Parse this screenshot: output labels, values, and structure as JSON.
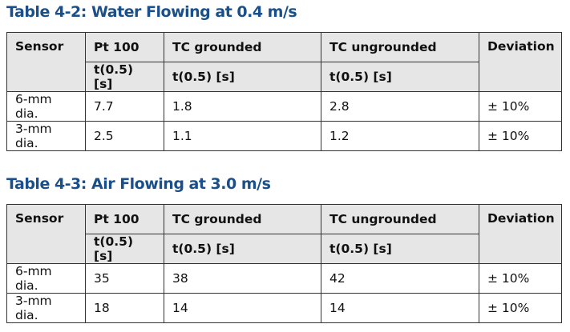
{
  "tables": [
    {
      "title": "Table 4-2: Water Flowing at 0.4 m/s",
      "headers": [
        "Sensor",
        "Pt 100",
        "TC grounded",
        "TC ungrounded",
        "Deviation"
      ],
      "subheaders": [
        "t(0.5) [s]",
        "t(0.5) [s]",
        "t(0.5) [s]"
      ],
      "rows": [
        [
          "6-mm dia.",
          "7.7",
          "1.8",
          "2.8",
          "± 10%"
        ],
        [
          "3-mm dia.",
          "2.5",
          "1.1",
          "1.2",
          "± 10%"
        ]
      ]
    },
    {
      "title": "Table 4-3: Air Flowing at 3.0 m/s",
      "headers": [
        "Sensor",
        "Pt 100",
        "TC grounded",
        "TC ungrounded",
        "Deviation"
      ],
      "subheaders": [
        "t(0.5) [s]",
        "t(0.5) [s]",
        "t(0.5) [s]"
      ],
      "rows": [
        [
          "6-mm dia.",
          "35",
          "38",
          "42",
          "± 10%"
        ],
        [
          "3-mm dia.",
          "18",
          "14",
          "14",
          "± 10%"
        ]
      ]
    }
  ]
}
